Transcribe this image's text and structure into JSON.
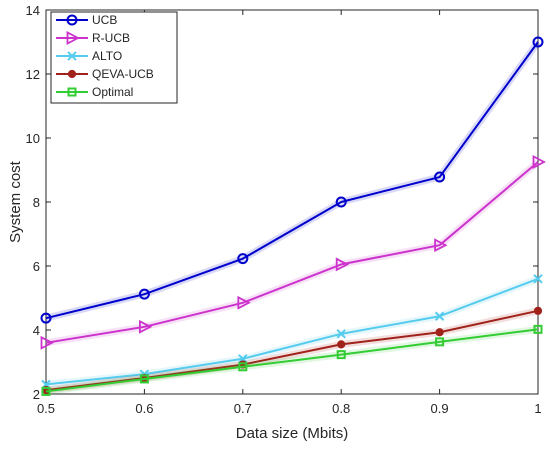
{
  "chart_data": {
    "type": "line",
    "title": "",
    "xlabel": "Data size (Mbits)",
    "ylabel": "System cost",
    "x": [
      0.5,
      0.6,
      0.7,
      0.8,
      0.9,
      1
    ],
    "x_tick_labels": [
      "0.5",
      "0.6",
      "0.7",
      "0.8",
      "0.9",
      "1"
    ],
    "xlim": [
      0.5,
      1
    ],
    "y_ticks": [
      2,
      4,
      6,
      8,
      10,
      12,
      14
    ],
    "y_tick_labels": [
      "2",
      "4",
      "6",
      "8",
      "10",
      "12",
      "14"
    ],
    "ylim": [
      2,
      14
    ],
    "grid": false,
    "legend_position": "top-left",
    "series": [
      {
        "name": "UCB",
        "color": "#0000cc",
        "marker": "circle",
        "values": [
          4.37,
          5.12,
          6.23,
          8.0,
          8.78,
          13.0
        ]
      },
      {
        "name": "R-UCB",
        "color": "#cc33cc",
        "marker": "triangle-right",
        "values": [
          3.6,
          4.1,
          4.85,
          6.05,
          6.65,
          9.25
        ]
      },
      {
        "name": "ALTO",
        "color": "#55ccee",
        "marker": "x",
        "values": [
          2.3,
          2.62,
          3.1,
          3.88,
          4.43,
          5.6
        ]
      },
      {
        "name": "QEVA-UCB",
        "color": "#a0221a",
        "marker": "dot",
        "values": [
          2.12,
          2.5,
          2.92,
          3.55,
          3.93,
          4.6
        ]
      },
      {
        "name": "Optimal",
        "color": "#33cc33",
        "marker": "square",
        "values": [
          2.08,
          2.47,
          2.85,
          3.23,
          3.63,
          4.02
        ]
      }
    ]
  }
}
